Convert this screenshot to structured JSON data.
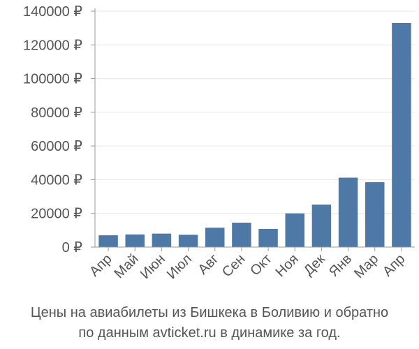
{
  "chart_data": {
    "type": "bar",
    "categories": [
      "Апр",
      "Май",
      "Июн",
      "Июл",
      "Авг",
      "Сен",
      "Окт",
      "Ноя",
      "Дек",
      "Янв",
      "Мар",
      "Апр"
    ],
    "values": [
      7000,
      7500,
      8000,
      7300,
      11500,
      14500,
      10800,
      20000,
      25200,
      41200,
      38500,
      133000
    ],
    "ylim": [
      0,
      140000
    ],
    "yticks": [
      0,
      20000,
      40000,
      60000,
      80000,
      100000,
      120000,
      140000
    ],
    "ytick_labels": [
      "0 ₽",
      "20000 ₽",
      "40000 ₽",
      "60000 ₽",
      "80000 ₽",
      "100000 ₽",
      "120000 ₽",
      "140000 ₽"
    ],
    "grid": true,
    "bar_color": "#4e79a7",
    "caption_lines": [
      "Цены на авиабилеты из Бишкека в Боливию и обратно",
      "по данным avticket.ru в динамике за год."
    ]
  }
}
